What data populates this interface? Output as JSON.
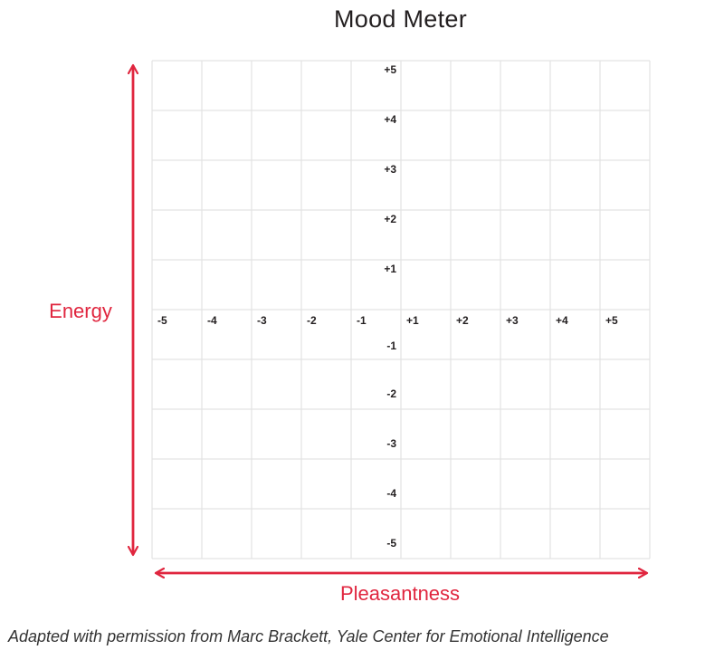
{
  "title": "Mood Meter",
  "y_axis_label": "Energy",
  "x_axis_label": "Pleasantness",
  "x_ticks": [
    "-5",
    "-4",
    "-3",
    "-2",
    "-1",
    "+1",
    "+2",
    "+3",
    "+4",
    "+5"
  ],
  "y_ticks": [
    "+5",
    "+4",
    "+3",
    "+2",
    "+1",
    "-1",
    "-2",
    "-3",
    "-4",
    "-5"
  ],
  "caption": "Adapted with permission from Marc Brackett, Yale Center for Emotional Intelligence",
  "colors": {
    "accent": "#e0263f",
    "grid": "#e3e3e3",
    "text": "#231f20"
  }
}
